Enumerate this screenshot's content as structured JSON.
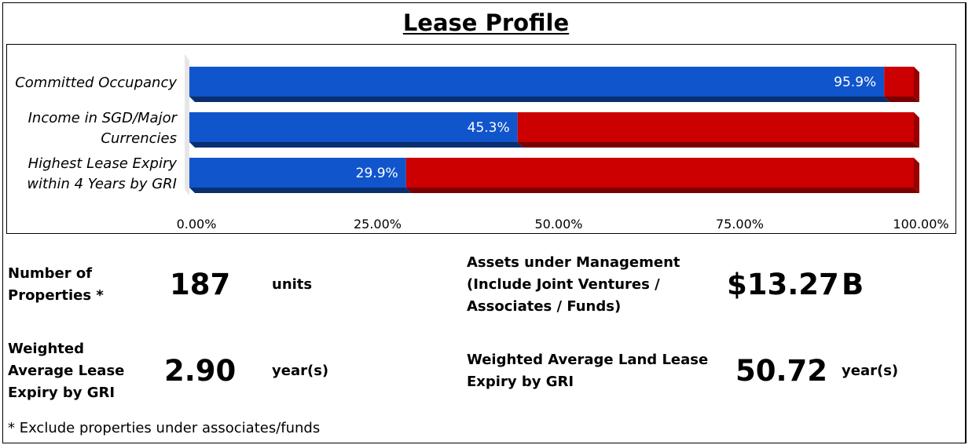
{
  "title": "Lease Profile",
  "chart_data": {
    "type": "bar",
    "orientation": "horizontal",
    "stacked": true,
    "categories": [
      [
        "Committed Occupancy"
      ],
      [
        "Income in SGD/Major",
        "Currencies"
      ],
      [
        "Highest Lease Expiry",
        "within 4 Years by GRI"
      ]
    ],
    "values": [
      95.9,
      45.3,
      29.9
    ],
    "value_labels": [
      "95.9%",
      "45.3%",
      "29.9%"
    ],
    "xlim": [
      0,
      100
    ],
    "xticks": [
      0,
      25,
      50,
      75,
      100
    ],
    "xtick_labels": [
      "0.00%",
      "25.00%",
      "50.00%",
      "75.00%",
      "100.00%"
    ],
    "colors": {
      "primary": "#1155cc",
      "remainder": "#cc0000"
    },
    "grid": false,
    "legend": "none"
  },
  "metrics": {
    "properties": {
      "label": "Number of\nProperties *",
      "value": "187",
      "unit": "units"
    },
    "aum": {
      "label": "Assets under Management\n(Include Joint Ventures /\nAssociates / Funds)",
      "value": "$13.27",
      "unit": "B"
    },
    "wale": {
      "label": "Weighted\nAverage Lease\nExpiry by GRI",
      "value": "2.90",
      "unit": "year(s)"
    },
    "walle": {
      "label": "Weighted Average Land Lease\nExpiry by GRI",
      "value": "50.72",
      "unit": "year(s)"
    }
  },
  "footnote": "* Exclude properties under associates/funds"
}
